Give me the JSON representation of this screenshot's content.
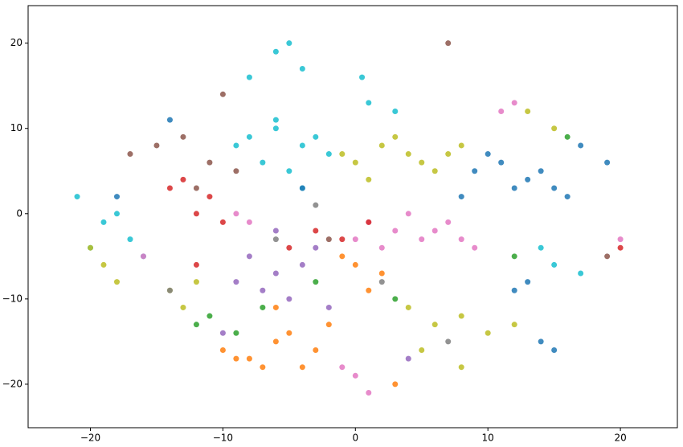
{
  "chart_data": {
    "type": "scatter",
    "xlim": [
      -24.7,
      24.3
    ],
    "ylim": [
      -25.1,
      24.4
    ],
    "xticks": [
      {
        "value": -20,
        "label": "−20"
      },
      {
        "value": -10,
        "label": "−10"
      },
      0,
      10,
      20
    ],
    "yticks": [
      {
        "value": -20,
        "label": "−20"
      },
      {
        "value": -10,
        "label": "−10"
      },
      0,
      10,
      20
    ],
    "grid": false,
    "series": [
      {
        "color": "#17becf",
        "x": [
          -8,
          -6,
          -4,
          -2,
          -7,
          -5,
          -3,
          -9,
          -6,
          -4,
          -21,
          -19,
          -17,
          -20,
          -18,
          -16,
          -6,
          -4,
          -8,
          -5,
          1,
          3,
          15,
          17,
          14,
          0.5
        ],
        "y": [
          9,
          10,
          8,
          7,
          6,
          5,
          9,
          8,
          11,
          3,
          2,
          -1,
          -3,
          -4,
          0,
          -5,
          19,
          17,
          16,
          20,
          13,
          12,
          -6,
          -7,
          -4,
          16
        ]
      },
      {
        "color": "#bcbd22",
        "x": [
          0,
          2,
          4,
          6,
          8,
          1,
          3,
          5,
          7,
          -1,
          4,
          6,
          8,
          10,
          12,
          5,
          -19,
          -18,
          -20,
          -14,
          -12,
          -13,
          13,
          15,
          8
        ],
        "y": [
          6,
          8,
          7,
          5,
          8,
          4,
          9,
          6,
          7,
          7,
          -11,
          -13,
          -12,
          -14,
          -13,
          -16,
          -6,
          -8,
          -4,
          -9,
          -8,
          -11,
          12,
          10,
          -18
        ]
      },
      {
        "color": "#1f77b4",
        "x": [
          9,
          11,
          13,
          15,
          10,
          12,
          14,
          8,
          16,
          14,
          15,
          13,
          12,
          -18,
          -4,
          -14,
          17,
          19
        ],
        "y": [
          5,
          6,
          4,
          3,
          7,
          3,
          5,
          2,
          2,
          -15,
          -16,
          -8,
          -9,
          2,
          3,
          11,
          8,
          6
        ]
      },
      {
        "color": "#e377c2",
        "x": [
          1,
          3,
          5,
          7,
          9,
          2,
          4,
          6,
          8,
          0,
          11,
          12,
          0,
          1,
          -1,
          -9,
          -8,
          20,
          -16
        ],
        "y": [
          -1,
          -2,
          -3,
          -1,
          -4,
          -4,
          0,
          -2,
          -3,
          -3,
          12,
          13,
          -19,
          -21,
          -18,
          0,
          -1,
          -3,
          -5
        ]
      },
      {
        "color": "#ff7f0e",
        "x": [
          -10,
          -8,
          -6,
          -4,
          -9,
          -7,
          -5,
          -3,
          0,
          2,
          -1,
          1,
          -2,
          3,
          -6
        ],
        "y": [
          -16,
          -17,
          -15,
          -18,
          -17,
          -18,
          -14,
          -16,
          -6,
          -7,
          -5,
          -9,
          -13,
          -20,
          -11
        ]
      },
      {
        "color": "#9467bd",
        "x": [
          -8,
          -6,
          -4,
          -7,
          -5,
          -3,
          -9,
          -2,
          -6,
          4,
          -10
        ],
        "y": [
          -5,
          -7,
          -6,
          -9,
          -10,
          -4,
          -8,
          -11,
          -2,
          -17,
          -14
        ]
      },
      {
        "color": "#d62728",
        "x": [
          -13,
          -11,
          -12,
          -10,
          -14,
          -3,
          -1,
          1,
          -5,
          20,
          -12
        ],
        "y": [
          4,
          2,
          0,
          -1,
          3,
          -2,
          -3,
          -1,
          -4,
          -4,
          -6
        ]
      },
      {
        "color": "#8c564b",
        "x": [
          -15,
          -17,
          -13,
          -11,
          -9,
          -12,
          -10,
          -2,
          7,
          19
        ],
        "y": [
          8,
          7,
          9,
          6,
          5,
          3,
          14,
          -3,
          20,
          -5
        ]
      },
      {
        "color": "#2ca02c",
        "x": [
          -11,
          -12,
          -9,
          12,
          -3,
          3,
          -7,
          16
        ],
        "y": [
          -12,
          -13,
          -14,
          -5,
          -8,
          -10,
          -11,
          9
        ]
      },
      {
        "color": "#7f7f7f",
        "x": [
          -6,
          2,
          7,
          -14,
          -3
        ],
        "y": [
          -3,
          -8,
          -15,
          -9,
          1
        ]
      }
    ]
  }
}
